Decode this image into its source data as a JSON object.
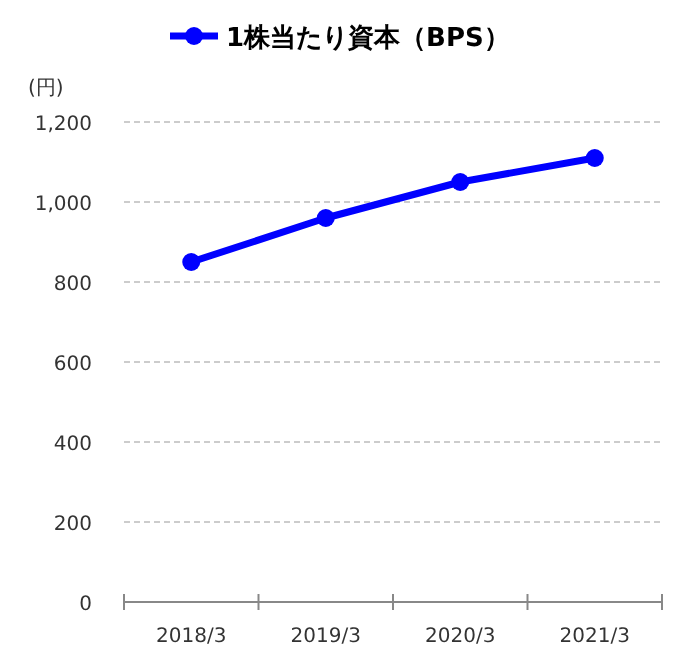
{
  "chart_data": {
    "type": "line",
    "ylabel": "(円)",
    "categories": [
      "2018/3",
      "2019/3",
      "2020/3",
      "2021/3"
    ],
    "series": [
      {
        "name": "1株当たり資本（BPS）",
        "color": "#0000ff",
        "values": [
          850,
          960,
          1050,
          1110
        ]
      }
    ],
    "ylim": [
      0,
      1200
    ],
    "yticks": [
      {
        "value": 0,
        "label": "0"
      },
      {
        "value": 200,
        "label": "200"
      },
      {
        "value": 400,
        "label": "400"
      },
      {
        "value": 600,
        "label": "600"
      },
      {
        "value": 800,
        "label": "800"
      },
      {
        "value": 1000,
        "label": "1,000"
      },
      {
        "value": 1200,
        "label": "1,200"
      }
    ],
    "grid": "y",
    "legend": "top",
    "marker": "circle",
    "line_style": "solid"
  }
}
